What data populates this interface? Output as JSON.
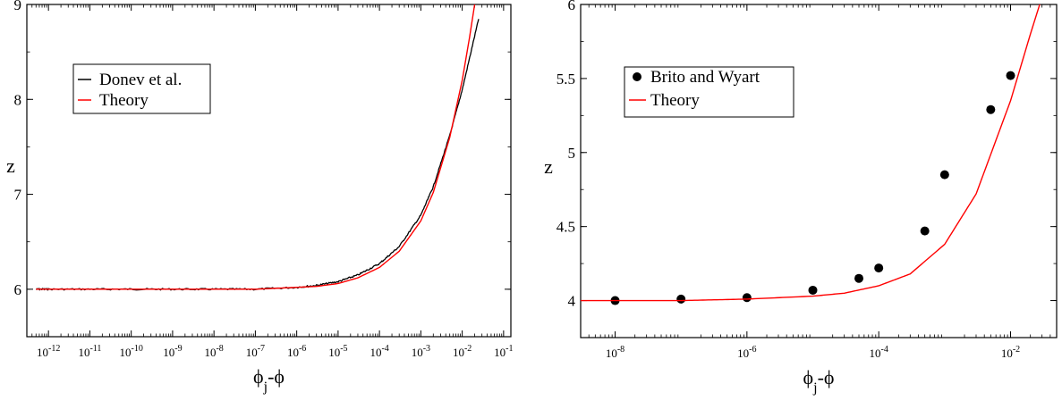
{
  "chart_data": [
    {
      "type": "line",
      "xlabel": "ϕj-ϕ",
      "ylabel": "z",
      "xscale": "log",
      "xlim": [
        3e-13,
        0.15
      ],
      "ylim": [
        5.5,
        9
      ],
      "grid": false,
      "legend_position": "upper-left",
      "x_tick_exponents": [
        -12,
        -11,
        -10,
        -9,
        -8,
        -7,
        -6,
        -5,
        -4,
        -3,
        -2,
        -1
      ],
      "y_ticks": [
        6,
        7,
        8,
        9
      ],
      "series": [
        {
          "name": "Donev et al.",
          "color": "#000000",
          "noisy": true,
          "x": [
            5e-13,
            1e-12,
            1e-11,
            1e-10,
            1e-09,
            1e-08,
            1e-07,
            1e-06,
            3e-06,
            1e-05,
            3e-05,
            0.0001,
            0.0003,
            0.001,
            0.002,
            0.005,
            0.01,
            0.025
          ],
          "y": [
            6.0,
            6.0,
            6.0,
            6.0,
            6.0,
            6.0,
            6.0,
            6.02,
            6.04,
            6.08,
            6.15,
            6.27,
            6.45,
            6.78,
            7.08,
            7.62,
            8.1,
            8.85
          ]
        },
        {
          "name": "Theory",
          "color": "#ff0000",
          "noisy": false,
          "x": [
            5e-13,
            1e-12,
            1e-11,
            1e-10,
            1e-09,
            1e-08,
            1e-07,
            1e-06,
            3e-06,
            1e-05,
            3e-05,
            0.0001,
            0.0003,
            0.001,
            0.002,
            0.005,
            0.01,
            0.015,
            0.02
          ],
          "y": [
            6.0,
            6.0,
            6.0,
            6.0,
            6.0,
            6.0,
            6.0,
            6.02,
            6.03,
            6.06,
            6.12,
            6.23,
            6.4,
            6.72,
            7.02,
            7.6,
            8.2,
            8.65,
            9.0
          ]
        }
      ]
    },
    {
      "type": "scatter",
      "xlabel": "ϕj-ϕ",
      "ylabel": "z",
      "xscale": "log",
      "xlim": [
        3e-09,
        0.05
      ],
      "ylim": [
        3.75,
        6
      ],
      "grid": false,
      "legend_position": "upper-left",
      "x_tick_exponents": [
        -8,
        -6,
        -4,
        -2
      ],
      "y_ticks": [
        4,
        4.5,
        5,
        5.5,
        6
      ],
      "series": [
        {
          "name": "Brito and Wyart",
          "color": "#000000",
          "marker": "circle",
          "x": [
            1e-08,
            1e-07,
            1e-06,
            1e-05,
            5e-05,
            0.0001,
            0.0005,
            0.001,
            0.005,
            0.01
          ],
          "y": [
            4.0,
            4.01,
            4.02,
            4.07,
            4.15,
            4.22,
            4.47,
            4.85,
            5.29,
            5.52
          ]
        },
        {
          "name": "Theory",
          "color": "#ff0000",
          "x": [
            3e-09,
            1e-08,
            1e-07,
            1e-06,
            1e-05,
            3e-05,
            0.0001,
            0.0003,
            0.001,
            0.003,
            0.01,
            0.02,
            0.03
          ],
          "y": [
            4.0,
            4.0,
            4.0,
            4.01,
            4.03,
            4.05,
            4.1,
            4.18,
            4.38,
            4.72,
            5.35,
            5.8,
            6.05
          ]
        }
      ]
    }
  ]
}
